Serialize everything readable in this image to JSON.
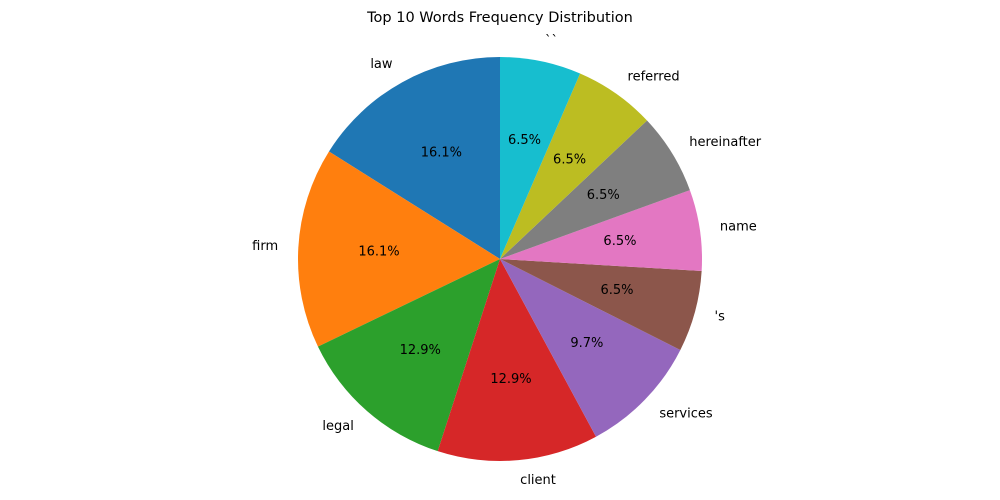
{
  "chart_data": {
    "type": "pie",
    "title": "Top 10 Words Frequency Distribution",
    "start_angle_deg": 90,
    "direction": "counterclockwise",
    "slices": [
      {
        "label": "law",
        "percent": 16.1,
        "pct_text": "16.1%",
        "color": "#1f77b4"
      },
      {
        "label": "firm",
        "percent": 16.1,
        "pct_text": "16.1%",
        "color": "#ff7f0e"
      },
      {
        "label": "legal",
        "percent": 12.9,
        "pct_text": "12.9%",
        "color": "#2ca02c"
      },
      {
        "label": "client",
        "percent": 12.9,
        "pct_text": "12.9%",
        "color": "#d62728"
      },
      {
        "label": "services",
        "percent": 9.7,
        "pct_text": "9.7%",
        "color": "#9467bd"
      },
      {
        "label": "'s",
        "percent": 6.5,
        "pct_text": "6.5%",
        "color": "#8c564b"
      },
      {
        "label": "name",
        "percent": 6.5,
        "pct_text": "6.5%",
        "color": "#e377c2"
      },
      {
        "label": "hereinafter",
        "percent": 6.5,
        "pct_text": "6.5%",
        "color": "#7f7f7f"
      },
      {
        "label": "referred",
        "percent": 6.5,
        "pct_text": "6.5%",
        "color": "#bcbd22"
      },
      {
        "label": "``",
        "percent": 6.5,
        "pct_text": "6.5%",
        "color": "#17becf"
      }
    ]
  }
}
